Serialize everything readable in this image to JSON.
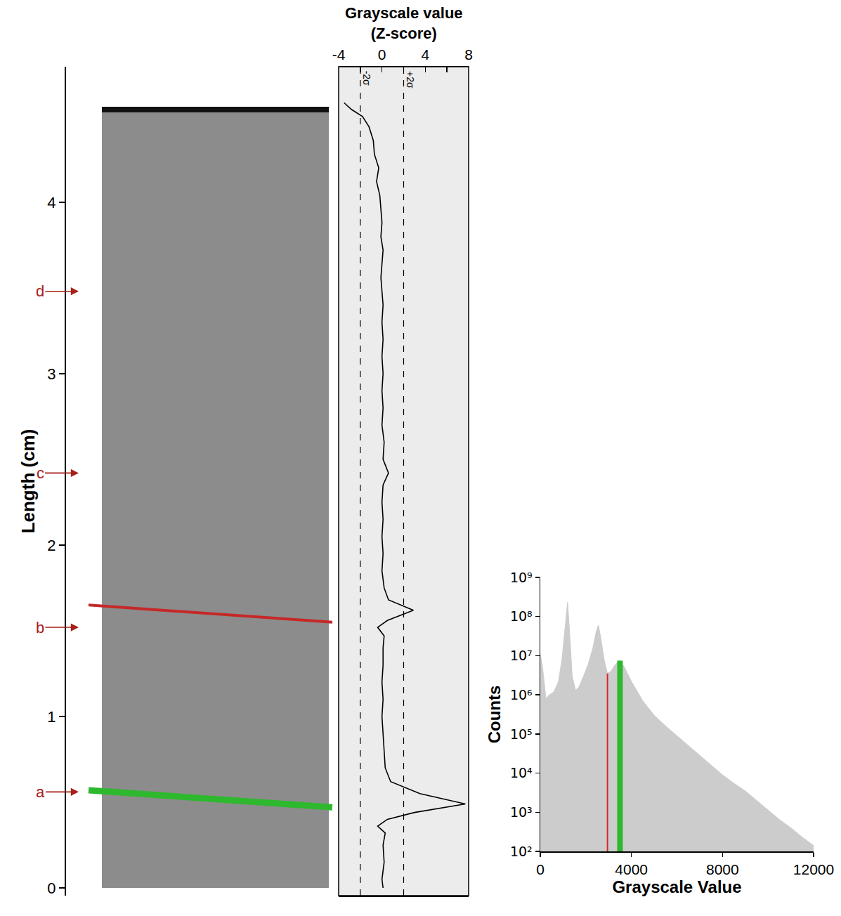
{
  "chart_data": [
    {
      "type": "image",
      "y_label": "Length (cm)",
      "ylim": [
        -0.045,
        4.79
      ],
      "yticks": [
        0,
        1,
        2,
        3,
        4
      ],
      "markers": [
        {
          "label": "a",
          "value": 0.56
        },
        {
          "label": "b",
          "value": 1.52
        },
        {
          "label": "c",
          "value": 2.42
        },
        {
          "label": "d",
          "value": 3.48
        }
      ],
      "marker_color": "#a8201a",
      "bands": [
        {
          "value": 0.52,
          "color": "#2eb82e"
        },
        {
          "value": 1.6,
          "color": "#c62828"
        }
      ]
    },
    {
      "type": "line",
      "x_label": "Grayscale value (Z-score)",
      "xlim": [
        -4,
        8
      ],
      "xticks": [
        -4,
        0,
        4,
        8
      ],
      "ylim": [
        -0.045,
        4.79
      ],
      "x": [
        -3.5,
        -2.8,
        -1.8,
        -1.2,
        -0.8,
        -0.7,
        -0.3,
        -0.5,
        -0.2,
        -0.1,
        0.0,
        -0.1,
        0.1,
        0.0,
        -0.1,
        0.0,
        0.1,
        0.0,
        0.1,
        0.0,
        0.1,
        0.0,
        0.1,
        0.0,
        0.2,
        0.1,
        0.6,
        0.1,
        0.0,
        0.1,
        0.0,
        0.1,
        0.0,
        0.2,
        0.6,
        2.9,
        0.5,
        -0.4,
        0.2,
        0.1,
        0.1,
        0.0,
        0.1,
        0.0,
        0.1,
        0.2,
        0.3,
        0.8,
        3.5,
        7.7,
        3.0,
        0.5,
        -0.4,
        0.3,
        0.1,
        0.2,
        0.0,
        0.1
      ],
      "y": [
        4.58,
        4.54,
        4.5,
        4.44,
        4.36,
        4.28,
        4.2,
        4.12,
        4.04,
        3.96,
        3.88,
        3.8,
        3.72,
        3.64,
        3.56,
        3.48,
        3.4,
        3.3,
        3.2,
        3.1,
        3.0,
        2.9,
        2.8,
        2.7,
        2.6,
        2.5,
        2.42,
        2.35,
        2.25,
        2.15,
        2.05,
        1.95,
        1.85,
        1.75,
        1.68,
        1.62,
        1.56,
        1.52,
        1.47,
        1.4,
        1.3,
        1.2,
        1.1,
        1.0,
        0.9,
        0.8,
        0.7,
        0.62,
        0.55,
        0.49,
        0.44,
        0.4,
        0.36,
        0.32,
        0.25,
        0.15,
        0.05,
        0.0
      ],
      "color": "#000000",
      "line_style": "solid",
      "reference_lines": [
        {
          "value": -2,
          "label": "-2σ"
        },
        {
          "value": 2,
          "label": "+2σ"
        }
      ]
    },
    {
      "type": "area",
      "x_label": "Grayscale Value",
      "y_label": "Counts",
      "log": "y",
      "xlim": [
        0,
        12000
      ],
      "xticks": [
        0,
        4000,
        8000,
        12000
      ],
      "ylim": [
        100,
        1000000000
      ],
      "yticks": [
        {
          "value": 100,
          "label": "10²"
        },
        {
          "value": 1000,
          "label": "10³"
        },
        {
          "value": 10000,
          "label": "10⁴"
        },
        {
          "value": 100000,
          "label": "10⁵"
        },
        {
          "value": 1000000,
          "label": "10⁶"
        },
        {
          "value": 10000000,
          "label": "10⁷"
        },
        {
          "value": 100000000,
          "label": "10⁸"
        },
        {
          "value": 1000000000,
          "label": "10⁹"
        }
      ],
      "x": [
        0,
        100,
        250,
        400,
        600,
        800,
        950,
        1100,
        1200,
        1300,
        1400,
        1550,
        1700,
        1900,
        2100,
        2300,
        2450,
        2550,
        2650,
        2800,
        2950,
        3100,
        3300,
        3500,
        3700,
        4000,
        4500,
        5000,
        5500,
        6000,
        6500,
        7000,
        7500,
        8000,
        8500,
        9000,
        9500,
        10000,
        10500,
        11000,
        11500,
        12000
      ],
      "values": [
        11000000,
        5000000,
        800000,
        1000000,
        1200000,
        2200000,
        8000000,
        60000000,
        230000000,
        30000000,
        3000000,
        1300000,
        1600000,
        3000000,
        6000000,
        15000000,
        40000000,
        60000000,
        30000000,
        8000000,
        3500000,
        4000000,
        6000000,
        7500000,
        5000000,
        2200000,
        700000,
        300000,
        160000,
        90000,
        50000,
        28000,
        16000,
        9000,
        5500,
        3500,
        2000,
        1100,
        650,
        400,
        230,
        140
      ],
      "color": "#cccccc",
      "thresholds": [
        {
          "value": 2950,
          "count": 3500000,
          "color": "#d62728"
        },
        {
          "value": 3500,
          "count": 7500000,
          "color": "#2eb82e"
        }
      ]
    }
  ]
}
